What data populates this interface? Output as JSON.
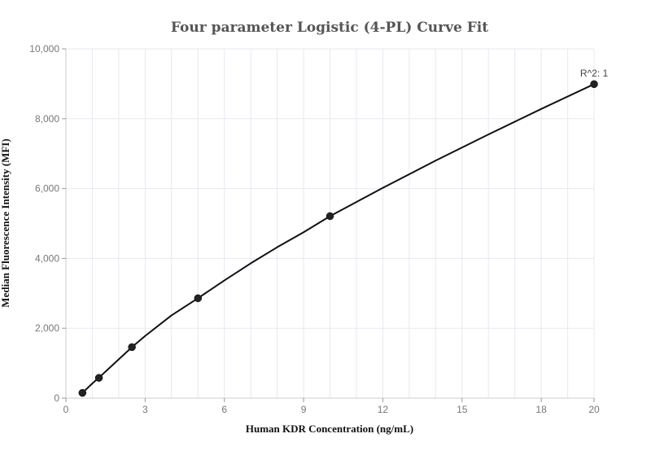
{
  "chart_data": {
    "type": "scatter",
    "title": "Four parameter Logistic (4-PL) Curve Fit",
    "xlabel": "Human KDR Concentration (ng/mL)",
    "ylabel": "Median Fluorescence Intensity (MFI)",
    "xlim": [
      0,
      20
    ],
    "ylim": [
      0,
      10000
    ],
    "x_ticks": [
      "0",
      "3",
      "6",
      "9",
      "12",
      "15",
      "18",
      "20"
    ],
    "y_ticks": [
      "0",
      "2,000",
      "4,000",
      "6,000",
      "8,000",
      "10,000"
    ],
    "grid": true,
    "series": [
      {
        "points": [
          {
            "x": 0.625,
            "y": 150
          },
          {
            "x": 1.25,
            "y": 580
          },
          {
            "x": 2.5,
            "y": 1460
          },
          {
            "x": 5,
            "y": 2860
          },
          {
            "x": 10,
            "y": 5210
          },
          {
            "x": 20,
            "y": 8990
          }
        ]
      }
    ],
    "fit_curve": [
      {
        "x": 0.625,
        "y": 150
      },
      {
        "x": 1.0,
        "y": 420
      },
      {
        "x": 1.5,
        "y": 760
      },
      {
        "x": 2.0,
        "y": 1110
      },
      {
        "x": 2.5,
        "y": 1460
      },
      {
        "x": 3.0,
        "y": 1780
      },
      {
        "x": 4.0,
        "y": 2370
      },
      {
        "x": 5.0,
        "y": 2860
      },
      {
        "x": 6.0,
        "y": 3370
      },
      {
        "x": 7.0,
        "y": 3860
      },
      {
        "x": 8.0,
        "y": 4320
      },
      {
        "x": 9.0,
        "y": 4750
      },
      {
        "x": 10.0,
        "y": 5210
      },
      {
        "x": 12.0,
        "y": 6020
      },
      {
        "x": 14.0,
        "y": 6800
      },
      {
        "x": 16.0,
        "y": 7550
      },
      {
        "x": 18.0,
        "y": 8280
      },
      {
        "x": 20.0,
        "y": 8990
      }
    ],
    "annotations": [
      {
        "text": "R^2: 1",
        "x": 20,
        "y": 8990
      }
    ],
    "colors": {
      "line": "#111111",
      "marker": "#222222",
      "grid": "#e8e8f0",
      "axis": "#cccccc"
    }
  }
}
